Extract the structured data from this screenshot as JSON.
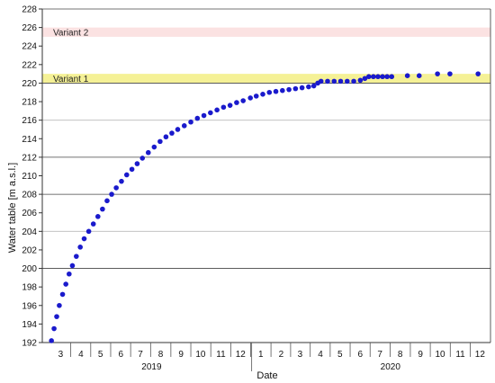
{
  "chart_data": {
    "type": "scatter",
    "title": "",
    "xlabel": "Date",
    "ylabel": "Water table [m a.s.l.]",
    "ylim": [
      192,
      228
    ],
    "yticks": [
      192,
      194,
      196,
      198,
      200,
      202,
      204,
      206,
      208,
      210,
      212,
      214,
      216,
      218,
      220,
      222,
      224,
      226,
      228
    ],
    "major_gridlines": [
      200,
      208,
      212,
      220,
      228
    ],
    "minor_gridlines": [
      204,
      216
    ],
    "xlim": [
      "2019-02-15",
      "2020-12-31"
    ],
    "month_ticks": [
      {
        "label": "3",
        "date": "2019-03-15"
      },
      {
        "label": "4",
        "date": "2019-04-15"
      },
      {
        "label": "5",
        "date": "2019-05-15"
      },
      {
        "label": "6",
        "date": "2019-06-15"
      },
      {
        "label": "7",
        "date": "2019-07-15"
      },
      {
        "label": "8",
        "date": "2019-08-15"
      },
      {
        "label": "9",
        "date": "2019-09-15"
      },
      {
        "label": "10",
        "date": "2019-10-15"
      },
      {
        "label": "11",
        "date": "2019-11-15"
      },
      {
        "label": "12",
        "date": "2019-12-15"
      },
      {
        "label": "1",
        "date": "2020-01-15"
      },
      {
        "label": "2",
        "date": "2020-02-15"
      },
      {
        "label": "3",
        "date": "2020-03-15"
      },
      {
        "label": "4",
        "date": "2020-04-15"
      },
      {
        "label": "5",
        "date": "2020-05-15"
      },
      {
        "label": "6",
        "date": "2020-06-15"
      },
      {
        "label": "7",
        "date": "2020-07-15"
      },
      {
        "label": "8",
        "date": "2020-08-15"
      },
      {
        "label": "9",
        "date": "2020-09-15"
      },
      {
        "label": "10",
        "date": "2020-10-15"
      },
      {
        "label": "11",
        "date": "2020-11-15"
      },
      {
        "label": "12",
        "date": "2020-12-15"
      }
    ],
    "year_labels": [
      {
        "label": "2019",
        "center": "2019-08-01"
      },
      {
        "label": "2020",
        "center": "2020-07-31"
      }
    ],
    "year_separators": [
      "2020-01-01"
    ],
    "bands": [
      {
        "label": "Variant 1",
        "y_from": 220,
        "y_to": 221,
        "color": "#f5f196"
      },
      {
        "label": "Variant 2",
        "y_from": 225,
        "y_to": 226,
        "color": "#fbe2e2"
      }
    ],
    "series": [
      {
        "color": "#1a1acc",
        "points": [
          [
            "2019-03-01",
            192.2
          ],
          [
            "2019-03-05",
            193.5
          ],
          [
            "2019-03-09",
            194.8
          ],
          [
            "2019-03-13",
            196.0
          ],
          [
            "2019-03-18",
            197.2
          ],
          [
            "2019-03-23",
            198.3
          ],
          [
            "2019-03-28",
            199.4
          ],
          [
            "2019-04-02",
            200.3
          ],
          [
            "2019-04-08",
            201.3
          ],
          [
            "2019-04-14",
            202.3
          ],
          [
            "2019-04-20",
            203.2
          ],
          [
            "2019-04-27",
            204.0
          ],
          [
            "2019-05-04",
            204.8
          ],
          [
            "2019-05-11",
            205.6
          ],
          [
            "2019-05-18",
            206.4
          ],
          [
            "2019-05-25",
            207.3
          ],
          [
            "2019-06-01",
            208.0
          ],
          [
            "2019-06-08",
            208.7
          ],
          [
            "2019-06-16",
            209.4
          ],
          [
            "2019-06-24",
            210.1
          ],
          [
            "2019-07-02",
            210.7
          ],
          [
            "2019-07-10",
            211.3
          ],
          [
            "2019-07-18",
            211.9
          ],
          [
            "2019-07-27",
            212.5
          ],
          [
            "2019-08-05",
            213.1
          ],
          [
            "2019-08-14",
            213.7
          ],
          [
            "2019-08-23",
            214.2
          ],
          [
            "2019-09-01",
            214.6
          ],
          [
            "2019-09-10",
            215.0
          ],
          [
            "2019-09-20",
            215.4
          ],
          [
            "2019-09-30",
            215.8
          ],
          [
            "2019-10-10",
            216.2
          ],
          [
            "2019-10-20",
            216.5
          ],
          [
            "2019-10-30",
            216.8
          ],
          [
            "2019-11-09",
            217.1
          ],
          [
            "2019-11-19",
            217.4
          ],
          [
            "2019-11-29",
            217.6
          ],
          [
            "2019-12-09",
            217.9
          ],
          [
            "2019-12-19",
            218.1
          ],
          [
            "2019-12-30",
            218.4
          ],
          [
            "2020-01-08",
            218.6
          ],
          [
            "2020-01-18",
            218.8
          ],
          [
            "2020-01-28",
            219.0
          ],
          [
            "2020-02-07",
            219.1
          ],
          [
            "2020-02-17",
            219.2
          ],
          [
            "2020-02-27",
            219.3
          ],
          [
            "2020-03-08",
            219.4
          ],
          [
            "2020-03-18",
            219.5
          ],
          [
            "2020-03-28",
            219.6
          ],
          [
            "2020-04-05",
            219.7
          ],
          [
            "2020-04-11",
            220.0
          ],
          [
            "2020-04-16",
            220.2
          ],
          [
            "2020-04-26",
            220.2
          ],
          [
            "2020-05-06",
            220.2
          ],
          [
            "2020-05-16",
            220.2
          ],
          [
            "2020-05-26",
            220.2
          ],
          [
            "2020-06-05",
            220.2
          ],
          [
            "2020-06-15",
            220.3
          ],
          [
            "2020-06-22",
            220.5
          ],
          [
            "2020-06-28",
            220.7
          ],
          [
            "2020-07-05",
            220.7
          ],
          [
            "2020-07-12",
            220.7
          ],
          [
            "2020-07-19",
            220.7
          ],
          [
            "2020-07-26",
            220.7
          ],
          [
            "2020-08-02",
            220.7
          ],
          [
            "2020-08-26",
            220.8
          ],
          [
            "2020-09-13",
            220.8
          ],
          [
            "2020-10-11",
            221.0
          ],
          [
            "2020-10-30",
            221.0
          ],
          [
            "2020-12-12",
            221.0
          ]
        ]
      }
    ]
  }
}
